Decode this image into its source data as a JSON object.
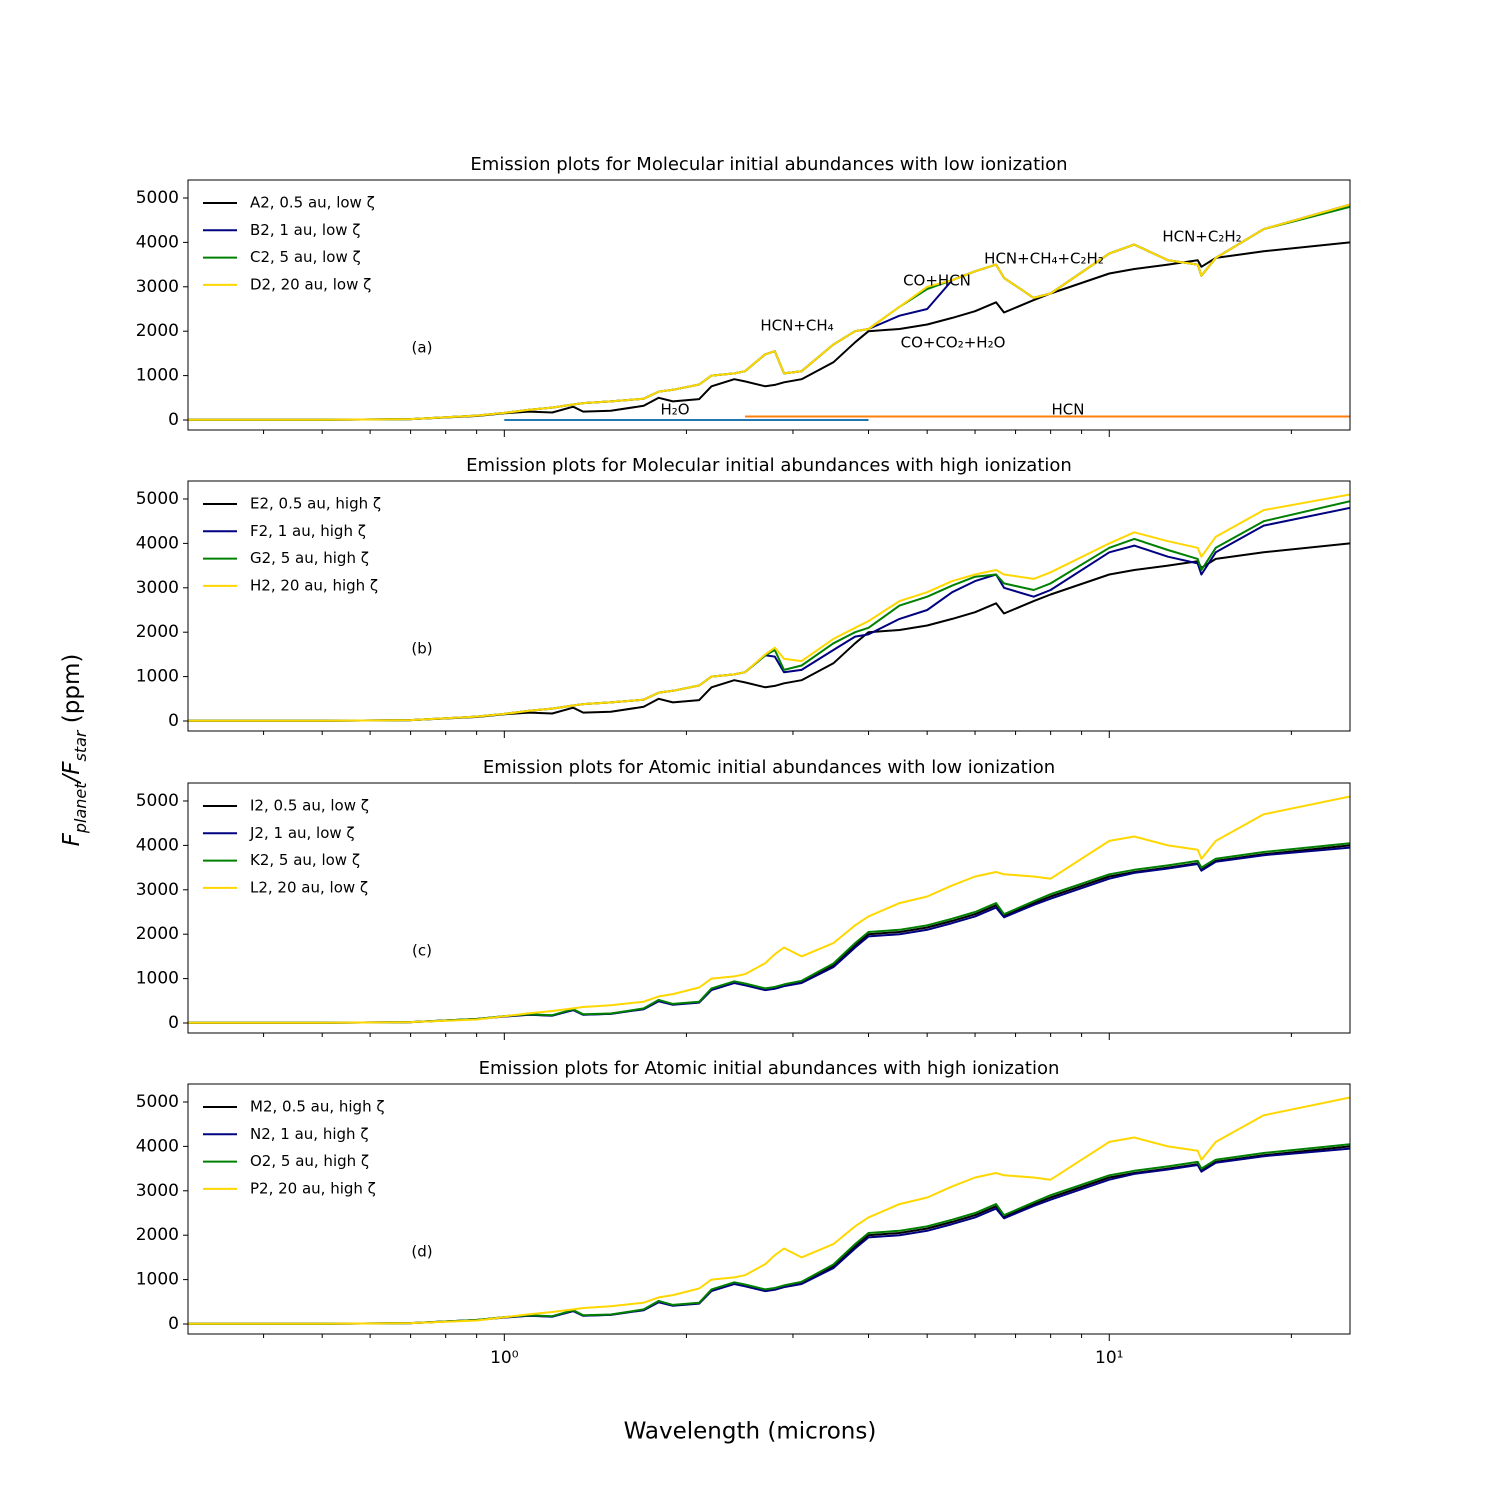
{
  "figure": {
    "ylabel": [
      "F",
      "planet",
      "/F",
      "star",
      " (ppm)"
    ],
    "xlabel": "Wavelength (microns)"
  },
  "chart_data": [
    {
      "type": "line",
      "title": "Emission plots for Molecular initial abundances with low ionization",
      "panel_label": "(a)",
      "xlog": true,
      "xlim": [
        0.3,
        25
      ],
      "xticks": [
        1,
        10
      ],
      "xticks_minor": [
        0.4,
        0.5,
        0.6,
        0.7,
        0.8,
        0.9,
        2,
        3,
        4,
        5,
        6,
        7,
        8,
        9,
        20
      ],
      "ylim": [
        -225,
        5405
      ],
      "yticks": [
        0,
        1000,
        2000,
        3000,
        4000,
        5000
      ],
      "legend": "upper left",
      "x": [
        0.3,
        0.5,
        0.7,
        0.9,
        1.0,
        1.1,
        1.2,
        1.3,
        1.35,
        1.5,
        1.7,
        1.8,
        1.9,
        2.1,
        2.2,
        2.4,
        2.5,
        2.7,
        2.8,
        2.9,
        3.1,
        3.5,
        3.8,
        4.0,
        4.5,
        5.0,
        5.5,
        6.0,
        6.5,
        6.7,
        7.5,
        8.0,
        10,
        11,
        12.5,
        14,
        14.2,
        15,
        18,
        25
      ],
      "series": [
        {
          "name": "A2, 0.5 au, low ζ",
          "color": "#000000",
          "values": [
            5,
            5,
            20,
            90,
            150,
            190,
            170,
            300,
            190,
            210,
            320,
            500,
            420,
            470,
            760,
            920,
            870,
            760,
            790,
            850,
            920,
            1300,
            1750,
            2000,
            2050,
            2150,
            2300,
            2450,
            2650,
            2420,
            2700,
            2850,
            3300,
            3400,
            3500,
            3600,
            3450,
            3650,
            3800,
            4000
          ]
        },
        {
          "name": "B2, 1 au, low ζ",
          "color": "#000080",
          "values": [
            5,
            5,
            20,
            100,
            160,
            230,
            280,
            350,
            380,
            420,
            480,
            640,
            680,
            800,
            1000,
            1050,
            1100,
            1480,
            1550,
            1050,
            1100,
            1700,
            2000,
            2050,
            2350,
            2500,
            3150,
            3350,
            3500,
            3200,
            2750,
            2850,
            3750,
            3950,
            3600,
            3500,
            3250,
            3650,
            4300,
            4850
          ]
        },
        {
          "name": "C2, 5 au, low ζ",
          "color": "#008000",
          "values": [
            5,
            5,
            20,
            100,
            160,
            230,
            280,
            350,
            380,
            420,
            480,
            640,
            680,
            800,
            1000,
            1050,
            1100,
            1480,
            1550,
            1050,
            1100,
            1700,
            2000,
            2050,
            2550,
            2950,
            3150,
            3350,
            3500,
            3200,
            2750,
            2850,
            3750,
            3950,
            3600,
            3500,
            3250,
            3650,
            4300,
            4800
          ]
        },
        {
          "name": "D2, 20 au, low ζ",
          "color": "#ffd700",
          "values": [
            5,
            5,
            20,
            100,
            160,
            230,
            280,
            350,
            380,
            420,
            480,
            640,
            680,
            800,
            1000,
            1050,
            1100,
            1480,
            1550,
            1050,
            1100,
            1700,
            2000,
            2050,
            2550,
            3000,
            3150,
            3350,
            3500,
            3200,
            2750,
            2850,
            3750,
            3950,
            3600,
            3500,
            3250,
            3650,
            4300,
            4850
          ]
        }
      ],
      "spans": [
        {
          "label": "H₂O",
          "x": [
            1,
            4
          ],
          "y": 0,
          "color": "#1f77b4"
        },
        {
          "label": "HCN",
          "x": [
            2.5,
            25
          ],
          "y": 80,
          "color": "#ff7f0e"
        }
      ],
      "annotations": [
        "HCN+CH₄",
        "CO+HCN",
        "CO+CO₂+H₂O",
        "HCN+CH₄+C₂H₂",
        "HCN+C₂H₂"
      ]
    },
    {
      "type": "line",
      "title": "Emission plots for Molecular initial abundances with high ionization",
      "panel_label": "(b)",
      "xlog": true,
      "xlim": [
        0.3,
        25
      ],
      "xticks": [
        1,
        10
      ],
      "xticks_minor": [
        0.4,
        0.5,
        0.6,
        0.7,
        0.8,
        0.9,
        2,
        3,
        4,
        5,
        6,
        7,
        8,
        9,
        20
      ],
      "ylim": [
        -225,
        5405
      ],
      "yticks": [
        0,
        1000,
        2000,
        3000,
        4000,
        5000
      ],
      "legend": "upper left",
      "x": [
        0.3,
        0.5,
        0.7,
        0.9,
        1.0,
        1.1,
        1.2,
        1.3,
        1.35,
        1.5,
        1.7,
        1.8,
        1.9,
        2.1,
        2.2,
        2.4,
        2.5,
        2.7,
        2.8,
        2.9,
        3.1,
        3.5,
        3.8,
        4.0,
        4.5,
        5.0,
        5.5,
        6.0,
        6.5,
        6.7,
        7.5,
        8.0,
        10,
        11,
        12.5,
        14,
        14.2,
        15,
        18,
        25
      ],
      "series": [
        {
          "name": "E2, 0.5 au, high ζ",
          "color": "#000000",
          "values": [
            5,
            5,
            20,
            90,
            150,
            190,
            170,
            300,
            190,
            210,
            320,
            500,
            420,
            470,
            760,
            920,
            870,
            760,
            790,
            850,
            920,
            1300,
            1750,
            2000,
            2050,
            2150,
            2300,
            2450,
            2650,
            2420,
            2700,
            2850,
            3300,
            3400,
            3500,
            3600,
            3450,
            3650,
            3800,
            4000
          ]
        },
        {
          "name": "F2, 1 au, high ζ",
          "color": "#000080",
          "values": [
            5,
            5,
            20,
            100,
            160,
            230,
            280,
            350,
            380,
            420,
            480,
            640,
            680,
            800,
            1000,
            1050,
            1100,
            1480,
            1450,
            1100,
            1150,
            1600,
            1900,
            1950,
            2300,
            2500,
            2900,
            3150,
            3300,
            3000,
            2800,
            2950,
            3800,
            3950,
            3700,
            3550,
            3300,
            3800,
            4400,
            4800
          ]
        },
        {
          "name": "G2, 5 au, high ζ",
          "color": "#008000",
          "values": [
            5,
            5,
            20,
            100,
            160,
            230,
            280,
            350,
            380,
            420,
            480,
            640,
            680,
            800,
            1000,
            1050,
            1100,
            1480,
            1600,
            1150,
            1250,
            1750,
            2000,
            2100,
            2600,
            2800,
            3050,
            3250,
            3300,
            3100,
            2950,
            3100,
            3900,
            4100,
            3850,
            3650,
            3400,
            3900,
            4500,
            4950
          ]
        },
        {
          "name": "H2, 20 au, high ζ",
          "color": "#ffd700",
          "values": [
            5,
            5,
            20,
            100,
            160,
            230,
            280,
            350,
            380,
            420,
            480,
            640,
            680,
            800,
            1000,
            1050,
            1100,
            1500,
            1650,
            1400,
            1350,
            1850,
            2100,
            2250,
            2700,
            2900,
            3150,
            3300,
            3400,
            3300,
            3200,
            3350,
            4000,
            4250,
            4050,
            3900,
            3700,
            4150,
            4750,
            5100
          ]
        }
      ]
    },
    {
      "type": "line",
      "title": "Emission plots for Atomic initial abundances with low ionization",
      "panel_label": "(c)",
      "xlog": true,
      "xlim": [
        0.3,
        25
      ],
      "xticks": [
        1,
        10
      ],
      "xticks_minor": [
        0.4,
        0.5,
        0.6,
        0.7,
        0.8,
        0.9,
        2,
        3,
        4,
        5,
        6,
        7,
        8,
        9,
        20
      ],
      "ylim": [
        -225,
        5405
      ],
      "yticks": [
        0,
        1000,
        2000,
        3000,
        4000,
        5000
      ],
      "legend": "upper left",
      "x": [
        0.3,
        0.5,
        0.7,
        0.9,
        1.0,
        1.1,
        1.2,
        1.3,
        1.35,
        1.5,
        1.7,
        1.8,
        1.9,
        2.1,
        2.2,
        2.4,
        2.5,
        2.7,
        2.8,
        2.9,
        3.1,
        3.5,
        3.8,
        4.0,
        4.5,
        5.0,
        5.5,
        6.0,
        6.5,
        6.7,
        7.5,
        8.0,
        10,
        11,
        12.5,
        14,
        14.2,
        15,
        18,
        25
      ],
      "series": [
        {
          "name": "I2, 0.5 au, low ζ",
          "color": "#000000",
          "values": [
            5,
            5,
            20,
            90,
            150,
            190,
            170,
            300,
            190,
            210,
            320,
            500,
            420,
            470,
            760,
            920,
            870,
            760,
            790,
            850,
            920,
            1300,
            1750,
            2000,
            2050,
            2150,
            2300,
            2450,
            2650,
            2420,
            2700,
            2850,
            3300,
            3400,
            3500,
            3600,
            3450,
            3650,
            3800,
            4000
          ]
        },
        {
          "name": "J2, 1 au, low ζ",
          "color": "#000080",
          "values": [
            5,
            5,
            20,
            90,
            145,
            185,
            165,
            290,
            185,
            205,
            310,
            490,
            410,
            460,
            740,
            900,
            850,
            740,
            770,
            830,
            900,
            1260,
            1700,
            1950,
            2000,
            2100,
            2250,
            2400,
            2600,
            2380,
            2660,
            2800,
            3250,
            3380,
            3480,
            3580,
            3430,
            3630,
            3780,
            3950
          ]
        },
        {
          "name": "K2, 5 au, low ζ",
          "color": "#008000",
          "values": [
            5,
            5,
            20,
            90,
            155,
            195,
            175,
            310,
            195,
            215,
            330,
            520,
            430,
            480,
            780,
            940,
            890,
            780,
            810,
            870,
            950,
            1340,
            1800,
            2050,
            2100,
            2200,
            2350,
            2500,
            2700,
            2450,
            2740,
            2900,
            3350,
            3450,
            3550,
            3650,
            3500,
            3700,
            3850,
            4050
          ]
        },
        {
          "name": "L2, 20 au, low ζ",
          "color": "#ffd700",
          "values": [
            5,
            5,
            20,
            80,
            150,
            220,
            270,
            330,
            360,
            400,
            480,
            600,
            650,
            800,
            1000,
            1050,
            1100,
            1350,
            1550,
            1700,
            1500,
            1800,
            2200,
            2400,
            2700,
            2850,
            3100,
            3300,
            3400,
            3350,
            3300,
            3250,
            4100,
            4200,
            4000,
            3900,
            3700,
            4100,
            4700,
            5100
          ]
        }
      ]
    },
    {
      "type": "line",
      "title": "Emission plots for Atomic initial abundances with high ionization",
      "panel_label": "(d)",
      "xlog": true,
      "xlim": [
        0.3,
        25
      ],
      "xticks": [
        {
          "value": 1,
          "label": "10⁰"
        },
        {
          "value": 10,
          "label": "10¹"
        }
      ],
      "xticks_minor": [
        0.4,
        0.5,
        0.6,
        0.7,
        0.8,
        0.9,
        2,
        3,
        4,
        5,
        6,
        7,
        8,
        9,
        20
      ],
      "ylim": [
        -225,
        5405
      ],
      "yticks": [
        0,
        1000,
        2000,
        3000,
        4000,
        5000
      ],
      "legend": "upper left",
      "x": [
        0.3,
        0.5,
        0.7,
        0.9,
        1.0,
        1.1,
        1.2,
        1.3,
        1.35,
        1.5,
        1.7,
        1.8,
        1.9,
        2.1,
        2.2,
        2.4,
        2.5,
        2.7,
        2.8,
        2.9,
        3.1,
        3.5,
        3.8,
        4.0,
        4.5,
        5.0,
        5.5,
        6.0,
        6.5,
        6.7,
        7.5,
        8.0,
        10,
        11,
        12.5,
        14,
        14.2,
        15,
        18,
        25
      ],
      "series": [
        {
          "name": "M2, 0.5 au, high ζ",
          "color": "#000000",
          "values": [
            5,
            5,
            20,
            90,
            150,
            190,
            170,
            300,
            190,
            210,
            320,
            500,
            420,
            470,
            760,
            920,
            870,
            760,
            790,
            850,
            920,
            1300,
            1750,
            2000,
            2050,
            2150,
            2300,
            2450,
            2650,
            2420,
            2700,
            2850,
            3300,
            3400,
            3500,
            3600,
            3450,
            3650,
            3800,
            4000
          ]
        },
        {
          "name": "N2, 1 au, high ζ",
          "color": "#000080",
          "values": [
            5,
            5,
            20,
            90,
            145,
            185,
            165,
            290,
            185,
            205,
            310,
            490,
            410,
            460,
            740,
            900,
            850,
            740,
            770,
            830,
            900,
            1260,
            1700,
            1950,
            2000,
            2100,
            2250,
            2400,
            2600,
            2380,
            2660,
            2800,
            3250,
            3380,
            3480,
            3580,
            3430,
            3630,
            3780,
            3950
          ]
        },
        {
          "name": "O2, 5 au, high ζ",
          "color": "#008000",
          "values": [
            5,
            5,
            20,
            90,
            155,
            195,
            175,
            310,
            195,
            215,
            330,
            520,
            430,
            480,
            780,
            940,
            890,
            780,
            810,
            870,
            950,
            1340,
            1800,
            2050,
            2100,
            2200,
            2350,
            2500,
            2700,
            2450,
            2740,
            2900,
            3350,
            3450,
            3550,
            3650,
            3500,
            3700,
            3850,
            4050
          ]
        },
        {
          "name": "P2, 20 au, high ζ",
          "color": "#ffd700",
          "values": [
            5,
            5,
            20,
            80,
            150,
            220,
            270,
            330,
            360,
            400,
            480,
            600,
            650,
            800,
            1000,
            1050,
            1100,
            1350,
            1550,
            1700,
            1500,
            1800,
            2200,
            2400,
            2700,
            2850,
            3100,
            3300,
            3400,
            3350,
            3300,
            3250,
            4100,
            4200,
            4000,
            3900,
            3700,
            4100,
            4700,
            5100
          ]
        }
      ]
    }
  ]
}
